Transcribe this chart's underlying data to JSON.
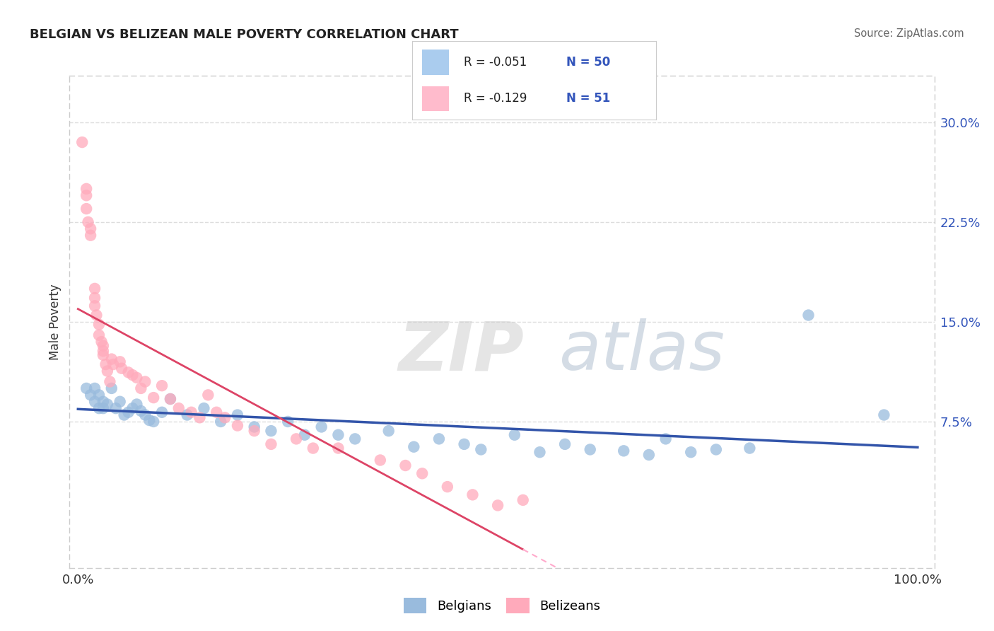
{
  "title": "BELGIAN VS BELIZEAN MALE POVERTY CORRELATION CHART",
  "source": "Source: ZipAtlas.com",
  "ylabel": "Male Poverty",
  "xlim": [
    -0.01,
    1.02
  ],
  "ylim": [
    -0.035,
    0.335
  ],
  "yticks": [
    0.075,
    0.15,
    0.225,
    0.3
  ],
  "ytick_labels": [
    "7.5%",
    "15.0%",
    "22.5%",
    "30.0%"
  ],
  "xticks": [
    0.0,
    1.0
  ],
  "xtick_labels": [
    "0.0%",
    "100.0%"
  ],
  "belgians_R": -0.051,
  "belgians_N": 50,
  "belizeans_R": -0.129,
  "belizeans_N": 51,
  "blue_scatter_color": "#99BBDD",
  "pink_scatter_color": "#FFAABB",
  "blue_line_color": "#3355AA",
  "pink_line_solid_color": "#DD4466",
  "pink_line_dash_color": "#FFAACC",
  "legend_blue_fill": "#AACCEE",
  "legend_pink_fill": "#FFBBCC",
  "legend_labels": [
    "Belgians",
    "Belizeans"
  ],
  "belgians_x": [
    0.01,
    0.015,
    0.02,
    0.02,
    0.025,
    0.025,
    0.03,
    0.03,
    0.035,
    0.04,
    0.045,
    0.05,
    0.055,
    0.06,
    0.065,
    0.07,
    0.075,
    0.08,
    0.085,
    0.09,
    0.1,
    0.11,
    0.13,
    0.15,
    0.17,
    0.19,
    0.21,
    0.23,
    0.25,
    0.27,
    0.29,
    0.31,
    0.33,
    0.37,
    0.4,
    0.43,
    0.46,
    0.48,
    0.52,
    0.55,
    0.58,
    0.61,
    0.65,
    0.68,
    0.7,
    0.73,
    0.76,
    0.8,
    0.87,
    0.96
  ],
  "belgians_y": [
    0.1,
    0.095,
    0.1,
    0.09,
    0.095,
    0.085,
    0.09,
    0.085,
    0.088,
    0.1,
    0.085,
    0.09,
    0.08,
    0.082,
    0.085,
    0.088,
    0.083,
    0.08,
    0.076,
    0.075,
    0.082,
    0.092,
    0.08,
    0.085,
    0.075,
    0.08,
    0.071,
    0.068,
    0.075,
    0.065,
    0.071,
    0.065,
    0.062,
    0.068,
    0.056,
    0.062,
    0.058,
    0.054,
    0.065,
    0.052,
    0.058,
    0.054,
    0.053,
    0.05,
    0.062,
    0.052,
    0.054,
    0.055,
    0.155,
    0.08
  ],
  "belizeans_x": [
    0.005,
    0.01,
    0.01,
    0.01,
    0.012,
    0.015,
    0.015,
    0.02,
    0.02,
    0.02,
    0.022,
    0.025,
    0.025,
    0.028,
    0.03,
    0.03,
    0.03,
    0.033,
    0.035,
    0.038,
    0.04,
    0.042,
    0.05,
    0.052,
    0.06,
    0.065,
    0.07,
    0.075,
    0.08,
    0.09,
    0.1,
    0.11,
    0.12,
    0.135,
    0.145,
    0.155,
    0.165,
    0.175,
    0.19,
    0.21,
    0.23,
    0.26,
    0.28,
    0.31,
    0.36,
    0.39,
    0.41,
    0.44,
    0.47,
    0.5,
    0.53
  ],
  "belizeans_y": [
    0.285,
    0.25,
    0.245,
    0.235,
    0.225,
    0.22,
    0.215,
    0.175,
    0.168,
    0.162,
    0.155,
    0.148,
    0.14,
    0.135,
    0.132,
    0.128,
    0.125,
    0.118,
    0.113,
    0.105,
    0.122,
    0.118,
    0.12,
    0.115,
    0.112,
    0.11,
    0.108,
    0.1,
    0.105,
    0.093,
    0.102,
    0.092,
    0.085,
    0.082,
    0.078,
    0.095,
    0.082,
    0.078,
    0.072,
    0.068,
    0.058,
    0.062,
    0.055,
    0.055,
    0.046,
    0.042,
    0.036,
    0.026,
    0.02,
    0.012,
    0.016
  ],
  "watermark_zip": "ZIP",
  "watermark_atlas": "atlas",
  "watermark_zip_color": "#CCCCCC",
  "watermark_atlas_color": "#AABBCC",
  "watermark_alpha": 0.5,
  "watermark_fontsize": 70,
  "background_color": "#FFFFFF",
  "grid_color": "#DDDDDD",
  "border_color": "#CCCCCC",
  "tick_color": "#3355BB",
  "title_color": "#222222",
  "source_color": "#666666"
}
